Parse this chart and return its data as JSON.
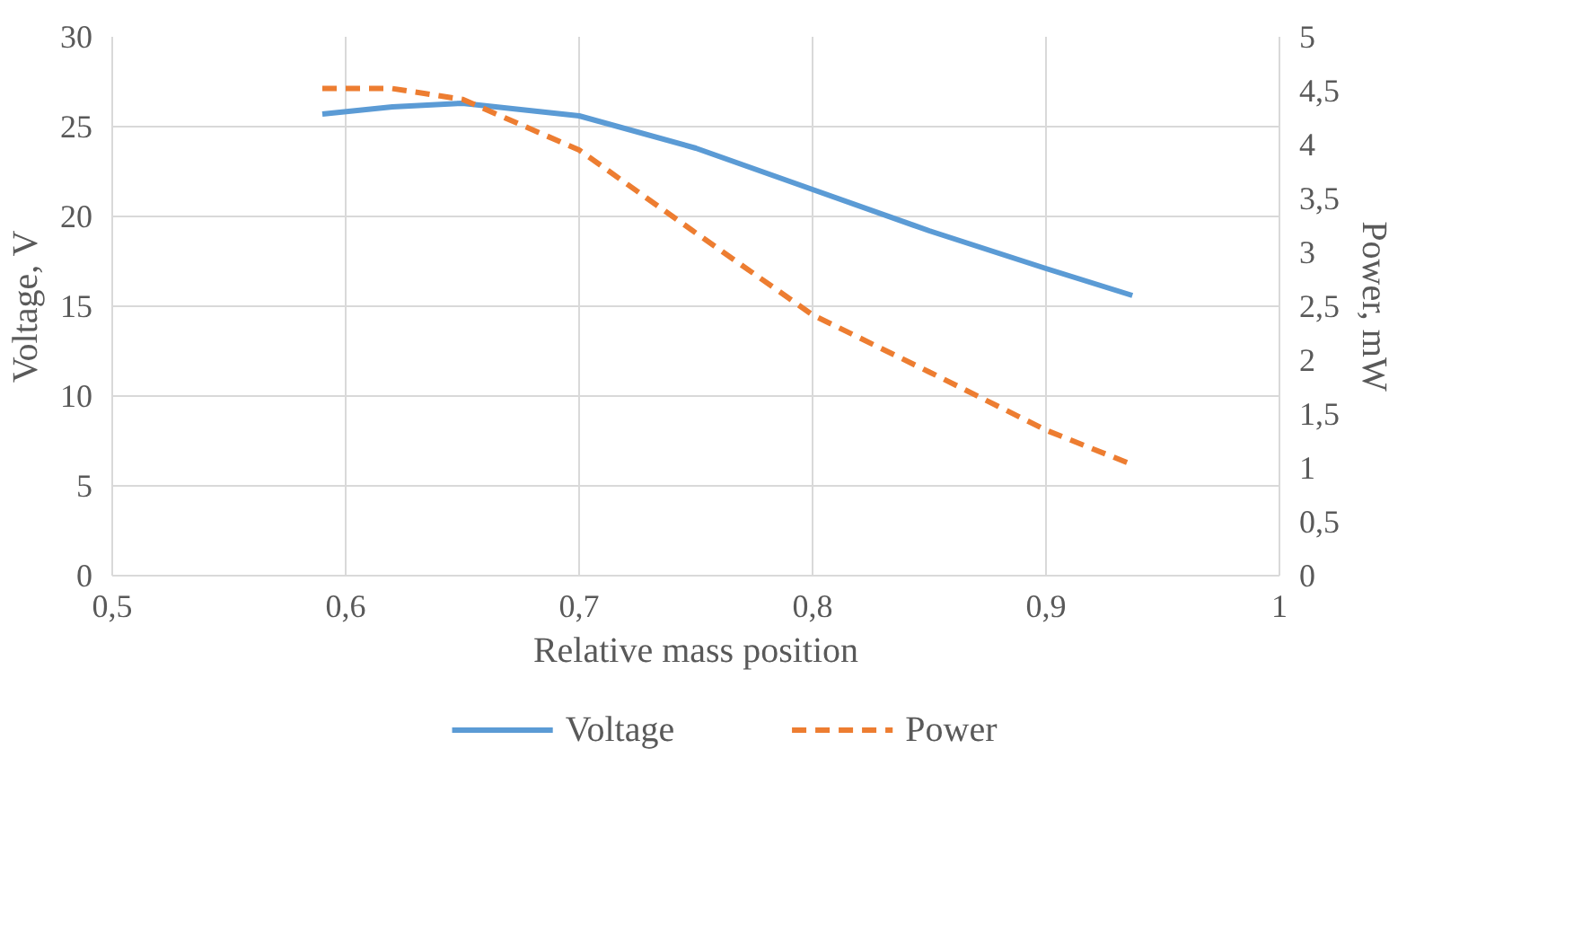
{
  "chart_data": {
    "type": "line",
    "xlabel": "Relative mass position",
    "ylabel": "Voltage, V",
    "y2label": "Power, mW",
    "xlim": [
      0.5,
      1
    ],
    "xticks": [
      {
        "value": 0.5,
        "label": "0,5"
      },
      {
        "value": 0.6,
        "label": "0,6"
      },
      {
        "value": 0.7,
        "label": "0,7"
      },
      {
        "value": 0.8,
        "label": "0,8"
      },
      {
        "value": 0.9,
        "label": "0,9"
      },
      1
    ],
    "ylim": [
      0,
      30
    ],
    "yticks": [
      0,
      5,
      10,
      15,
      20,
      25,
      30
    ],
    "y2lim": [
      0,
      5
    ],
    "y2ticks": [
      0,
      {
        "value": 0.5,
        "label": "0,5"
      },
      1,
      {
        "value": 1.5,
        "label": "1,5"
      },
      2,
      {
        "value": 2.5,
        "label": "2,5"
      },
      3,
      {
        "value": 3.5,
        "label": "3,5"
      },
      4,
      {
        "value": 4.5,
        "label": "4,5"
      },
      5
    ],
    "grid": true,
    "legend": "bottom",
    "marker": "none",
    "series": [
      {
        "name": "Voltage",
        "color": "#5b9bd5",
        "line_style": "solid",
        "x": [
          0.59,
          0.62,
          0.65,
          0.7,
          0.75,
          0.8,
          0.85,
          0.9,
          0.937
        ],
        "values": [
          25.7,
          26.1,
          26.3,
          25.6,
          23.8,
          21.5,
          19.2,
          17.1,
          15.6
        ]
      },
      {
        "name": "Power",
        "color": "#ed7d31",
        "line_style": "dashed",
        "axis": "y2",
        "x": [
          0.59,
          0.62,
          0.65,
          0.7,
          0.75,
          0.8,
          0.85,
          0.9,
          0.937
        ],
        "values": [
          4.52,
          4.52,
          4.42,
          3.95,
          3.18,
          2.42,
          1.89,
          1.35,
          1.03
        ]
      }
    ]
  }
}
